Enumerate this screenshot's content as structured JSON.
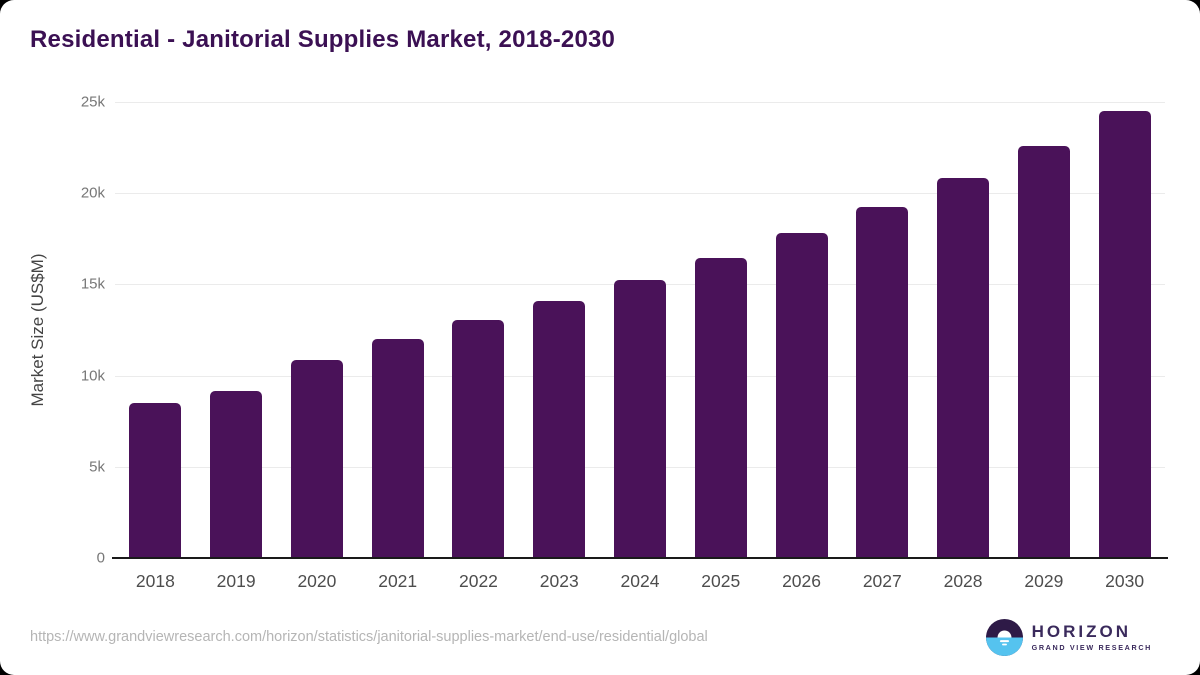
{
  "chart_data": {
    "type": "bar",
    "title": "Residential - Janitorial Supplies Market, 2018-2030",
    "categories": [
      "2018",
      "2019",
      "2020",
      "2021",
      "2022",
      "2023",
      "2024",
      "2025",
      "2026",
      "2027",
      "2028",
      "2029",
      "2030"
    ],
    "values": [
      8500,
      9150,
      10850,
      12000,
      13050,
      14100,
      15250,
      16450,
      17800,
      19250,
      20850,
      22600,
      24500
    ],
    "xlabel": "",
    "ylabel": "Market Size (US$M)",
    "ylim": [
      0,
      25000
    ],
    "yticks": [
      0,
      5000,
      10000,
      15000,
      20000,
      25000
    ],
    "ytick_labels": [
      "0",
      "5k",
      "10k",
      "15k",
      "20k",
      "25k"
    ],
    "grid": true,
    "legend_position": "none",
    "bar_color": "#4a1259"
  },
  "colors": {
    "title": "#3b1053",
    "bar": "#4a1259",
    "gridline": "#ebebeb",
    "axis": "#1a1a1a",
    "logo_purple": "#2e1a47",
    "logo_blue": "#55c3ef"
  },
  "footer": {
    "source_url": "https://www.grandviewresearch.com/horizon/statistics/janitorial-supplies-market/end-use/residential/global",
    "logo": {
      "title": "HORIZON",
      "subtitle": "GRAND VIEW RESEARCH"
    }
  }
}
